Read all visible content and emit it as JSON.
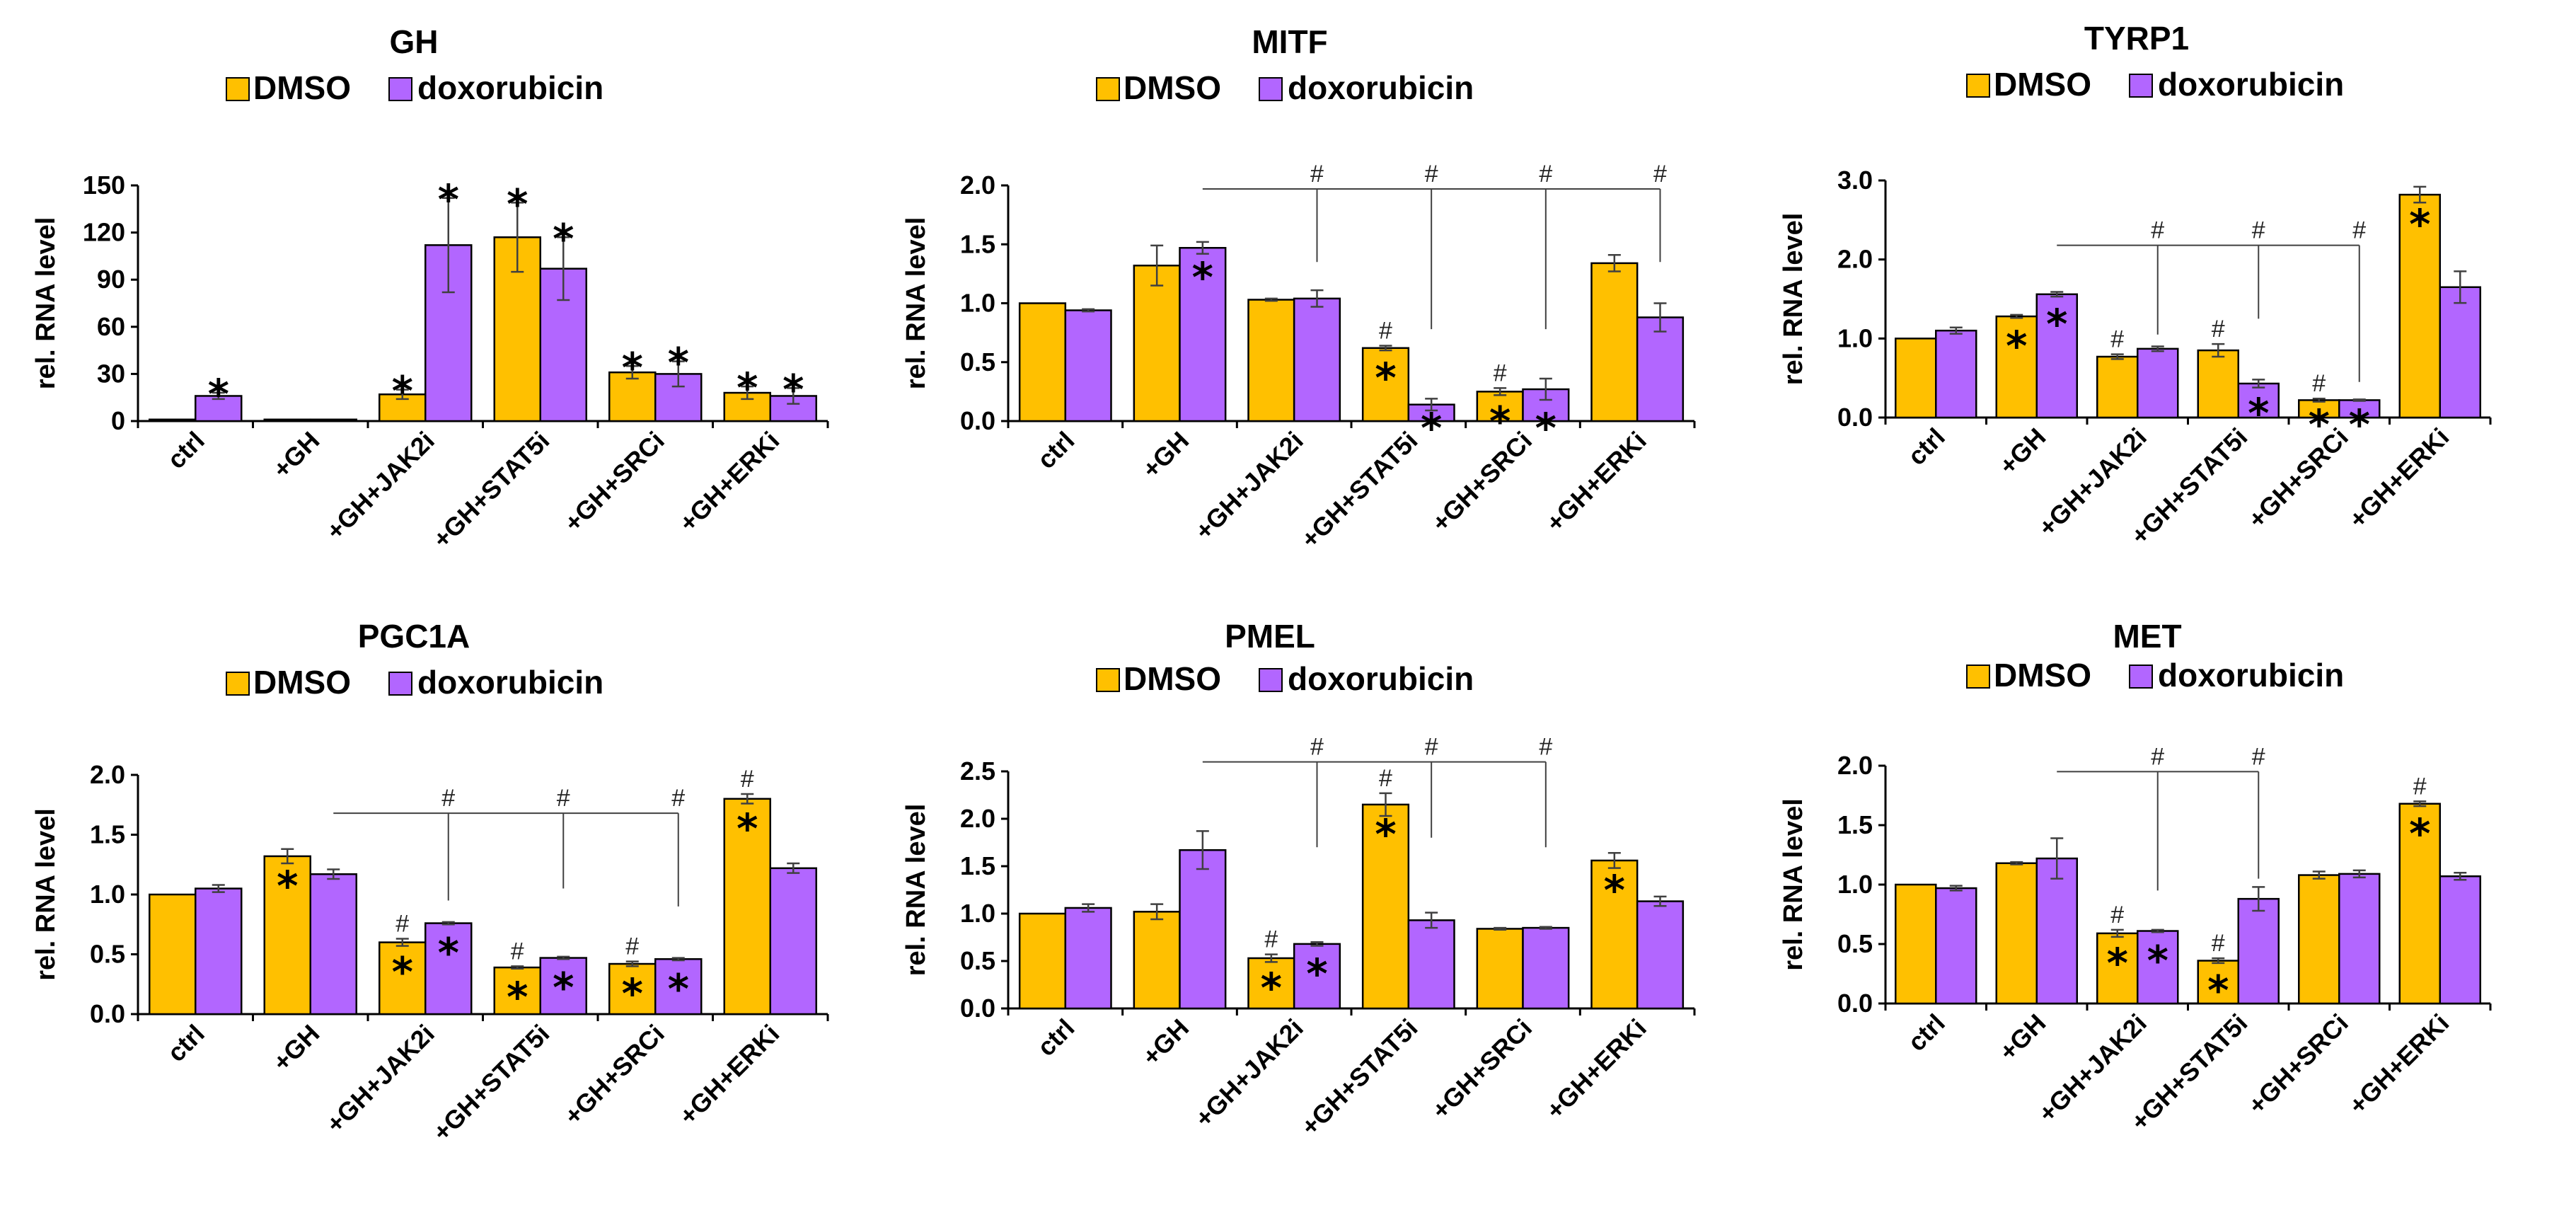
{
  "colors": {
    "dmso": "#FFC000",
    "doxorubicin": "#B266FF",
    "bar_edge": "#000000",
    "error": "#404040",
    "bracket": "#404040"
  },
  "legend": {
    "dmso_label": "DMSO",
    "doxorubicin_label": "doxorubicin"
  },
  "chart_data": [
    {
      "type": "bar",
      "title": "GH",
      "ylabel": "rel. RNA level",
      "xlabel": "",
      "ylim": [
        0,
        150
      ],
      "yticks": [
        "0",
        "30",
        "60",
        "90",
        "120",
        "150"
      ],
      "categories": [
        "ctrl",
        "+GH",
        "+GH+JAK2i",
        "+GH+STAT5i",
        "+GH+SRCi",
        "+GH+ERKi"
      ],
      "series": [
        {
          "name": "DMSO",
          "values": [
            1,
            1,
            17,
            117,
            31,
            18
          ],
          "errors": [
            0,
            0,
            3,
            22,
            4,
            4
          ],
          "stars": [
            false,
            false,
            true,
            true,
            true,
            true
          ],
          "star_pos": [
            "above",
            "above",
            "above",
            "above",
            "above",
            "above"
          ],
          "hash": [
            false,
            false,
            false,
            false,
            false,
            false
          ]
        },
        {
          "name": "doxorubicin",
          "values": [
            16,
            1,
            112,
            97,
            30,
            16
          ],
          "errors": [
            2,
            0,
            30,
            20,
            8,
            5
          ],
          "stars": [
            true,
            false,
            true,
            true,
            true,
            true
          ],
          "star_pos": [
            "above",
            "above",
            "above",
            "above",
            "above",
            "above"
          ],
          "hash": [
            false,
            false,
            false,
            false,
            false,
            false
          ]
        }
      ],
      "bracket": null
    },
    {
      "type": "bar",
      "title": "MITF",
      "ylabel": "rel. RNA level",
      "xlabel": "",
      "ylim": [
        0,
        2.0
      ],
      "yticks": [
        "0.0",
        "0.5",
        "1.0",
        "1.5",
        "2.0"
      ],
      "categories": [
        "ctrl",
        "+GH",
        "+GH+JAK2i",
        "+GH+STAT5i",
        "+GH+SRCi",
        "+GH+ERKi"
      ],
      "series": [
        {
          "name": "DMSO",
          "values": [
            1.0,
            1.32,
            1.03,
            0.62,
            0.25,
            1.34
          ],
          "errors": [
            0,
            0.17,
            0.01,
            0.02,
            0.03,
            0.07
          ],
          "stars": [
            false,
            false,
            false,
            true,
            true,
            false
          ],
          "star_pos": [
            "inside",
            "inside",
            "inside",
            "inside",
            "inside",
            "inside"
          ],
          "hash": [
            false,
            false,
            false,
            true,
            true,
            false
          ]
        },
        {
          "name": "doxorubicin",
          "values": [
            0.94,
            1.47,
            1.04,
            0.14,
            0.27,
            0.88
          ],
          "errors": [
            0.01,
            0.05,
            0.07,
            0.05,
            0.09,
            0.12
          ],
          "stars": [
            false,
            true,
            false,
            true,
            true,
            false
          ],
          "star_pos": [
            "inside",
            "inside",
            "inside",
            "below",
            "below",
            "inside"
          ],
          "hash": [
            false,
            false,
            false,
            false,
            false,
            false
          ]
        }
      ],
      "bracket": {
        "mark": "#",
        "y": 1.97,
        "from": 1,
        "to": 5,
        "drops": [
          {
            "cat": 2,
            "series": 1,
            "y": 1.35
          },
          {
            "cat": 3,
            "series": 1,
            "y": 0.78
          },
          {
            "cat": 4,
            "series": 1,
            "y": 0.78
          },
          {
            "cat": 5,
            "series": 1,
            "y": 1.35
          }
        ]
      }
    },
    {
      "type": "bar",
      "title": "TYRP1",
      "ylabel": "rel. RNA level",
      "xlabel": "",
      "ylim": [
        0,
        3.0
      ],
      "yticks": [
        "0.0",
        "1.0",
        "2.0",
        "3.0"
      ],
      "categories": [
        "ctrl",
        "+GH",
        "+GH+JAK2i",
        "+GH+STAT5i",
        "+GH+SRCi",
        "+GH+ERKi"
      ],
      "series": [
        {
          "name": "DMSO",
          "values": [
            1.0,
            1.28,
            0.77,
            0.85,
            0.22,
            2.82
          ],
          "errors": [
            0,
            0.02,
            0.03,
            0.08,
            0.02,
            0.1
          ],
          "stars": [
            false,
            true,
            false,
            false,
            true,
            true
          ],
          "star_pos": [
            "inside",
            "inside",
            "inside",
            "inside",
            "below",
            "inside"
          ],
          "hash": [
            false,
            false,
            true,
            true,
            true,
            false
          ]
        },
        {
          "name": "doxorubicin",
          "values": [
            1.1,
            1.56,
            0.87,
            0.43,
            0.22,
            1.65
          ],
          "errors": [
            0.04,
            0.03,
            0.03,
            0.05,
            0.01,
            0.2
          ],
          "stars": [
            false,
            true,
            false,
            true,
            true,
            false
          ],
          "star_pos": [
            "inside",
            "inside",
            "inside",
            "inside",
            "below",
            "inside"
          ],
          "hash": [
            false,
            false,
            false,
            false,
            false,
            false
          ]
        }
      ],
      "bracket": {
        "mark": "#",
        "y": 2.18,
        "from": 1,
        "to": 4,
        "drops": [
          {
            "cat": 2,
            "series": 1,
            "y": 1.05
          },
          {
            "cat": 3,
            "series": 1,
            "y": 1.25
          },
          {
            "cat": 4,
            "series": 1,
            "y": 0.45
          }
        ]
      }
    },
    {
      "type": "bar",
      "title": "PGC1A",
      "ylabel": "rel. RNA level",
      "xlabel": "",
      "ylim": [
        0,
        2.0
      ],
      "yticks": [
        "0.0",
        "0.5",
        "1.0",
        "1.5",
        "2.0"
      ],
      "categories": [
        "ctrl",
        "+GH",
        "+GH+JAK2i",
        "+GH+STAT5i",
        "+GH+SRCi",
        "+GH+ERKi"
      ],
      "series": [
        {
          "name": "DMSO",
          "values": [
            1.0,
            1.32,
            0.6,
            0.39,
            0.42,
            1.8
          ],
          "errors": [
            0,
            0.06,
            0.03,
            0.01,
            0.02,
            0.04
          ],
          "stars": [
            false,
            true,
            true,
            true,
            true,
            true
          ],
          "star_pos": [
            "inside",
            "inside",
            "inside",
            "inside",
            "inside",
            "inside"
          ],
          "hash": [
            false,
            false,
            true,
            true,
            true,
            true
          ]
        },
        {
          "name": "doxorubicin",
          "values": [
            1.05,
            1.17,
            0.76,
            0.47,
            0.46,
            1.22
          ],
          "errors": [
            0.03,
            0.04,
            0.01,
            0.01,
            0.01,
            0.04
          ],
          "stars": [
            false,
            false,
            true,
            true,
            true,
            false
          ],
          "star_pos": [
            "inside",
            "inside",
            "inside",
            "inside",
            "inside",
            "inside"
          ],
          "hash": [
            false,
            false,
            false,
            false,
            false,
            false
          ]
        }
      ],
      "bracket": {
        "mark": "#",
        "y": 1.68,
        "from": 1,
        "to": 4,
        "drops": [
          {
            "cat": 2,
            "series": 1,
            "y": 0.95
          },
          {
            "cat": 3,
            "series": 1,
            "y": 1.05
          },
          {
            "cat": 4,
            "series": 1,
            "y": 0.9
          }
        ]
      }
    },
    {
      "type": "bar",
      "title": "PMEL",
      "ylabel": "rel. RNA level",
      "xlabel": "",
      "ylim": [
        0,
        2.5
      ],
      "yticks": [
        "0.0",
        "0.5",
        "1.0",
        "1.5",
        "2.0",
        "2.5"
      ],
      "categories": [
        "ctrl",
        "+GH",
        "+GH+JAK2i",
        "+GH+STAT5i",
        "+GH+SRCi",
        "+GH+ERKi"
      ],
      "series": [
        {
          "name": "DMSO",
          "values": [
            1.0,
            1.02,
            0.53,
            2.15,
            0.84,
            1.56
          ],
          "errors": [
            0,
            0.08,
            0.04,
            0.12,
            0.01,
            0.08
          ],
          "stars": [
            false,
            false,
            true,
            true,
            false,
            true
          ],
          "star_pos": [
            "inside",
            "inside",
            "inside",
            "inside",
            "inside",
            "inside"
          ],
          "hash": [
            false,
            false,
            true,
            true,
            false,
            false
          ]
        },
        {
          "name": "doxorubicin",
          "values": [
            1.06,
            1.67,
            0.68,
            0.93,
            0.85,
            1.13
          ],
          "errors": [
            0.04,
            0.2,
            0.02,
            0.08,
            0.01,
            0.05
          ],
          "stars": [
            false,
            false,
            true,
            false,
            false,
            false
          ],
          "star_pos": [
            "inside",
            "inside",
            "inside",
            "inside",
            "inside",
            "inside"
          ],
          "hash": [
            false,
            false,
            false,
            false,
            false,
            false
          ]
        }
      ],
      "bracket": {
        "mark": "#",
        "y": 2.6,
        "from": 1,
        "to": 4,
        "drops": [
          {
            "cat": 2,
            "series": 1,
            "y": 1.7
          },
          {
            "cat": 3,
            "series": 1,
            "y": 1.8
          },
          {
            "cat": 4,
            "series": 1,
            "y": 1.7
          }
        ]
      }
    },
    {
      "type": "bar",
      "title": "MET",
      "ylabel": "rel. RNA level",
      "xlabel": "",
      "ylim": [
        0,
        2.0
      ],
      "yticks": [
        "0.0",
        "0.5",
        "1.0",
        "1.5",
        "2.0"
      ],
      "categories": [
        "ctrl",
        "+GH",
        "+GH+JAK2i",
        "+GH+STAT5i",
        "+GH+SRCi",
        "+GH+ERKi"
      ],
      "series": [
        {
          "name": "DMSO",
          "values": [
            1.0,
            1.18,
            0.59,
            0.36,
            1.08,
            1.68
          ],
          "errors": [
            0,
            0.01,
            0.03,
            0.02,
            0.03,
            0.02
          ],
          "stars": [
            false,
            false,
            true,
            true,
            false,
            true
          ],
          "star_pos": [
            "inside",
            "inside",
            "inside",
            "inside",
            "inside",
            "inside"
          ],
          "hash": [
            false,
            false,
            true,
            true,
            false,
            true
          ]
        },
        {
          "name": "doxorubicin",
          "values": [
            0.97,
            1.22,
            0.61,
            0.88,
            1.09,
            1.07
          ],
          "errors": [
            0.02,
            0.17,
            0.01,
            0.1,
            0.03,
            0.03
          ],
          "stars": [
            false,
            false,
            true,
            false,
            false,
            false
          ],
          "star_pos": [
            "inside",
            "inside",
            "inside",
            "inside",
            "inside",
            "inside"
          ],
          "hash": [
            false,
            false,
            false,
            false,
            false,
            false
          ]
        }
      ],
      "bracket": {
        "mark": "#",
        "y": 1.95,
        "from": 1,
        "to": 3,
        "drops": [
          {
            "cat": 2,
            "series": 1,
            "y": 0.95
          },
          {
            "cat": 3,
            "series": 1,
            "y": 1.05
          }
        ]
      }
    }
  ]
}
